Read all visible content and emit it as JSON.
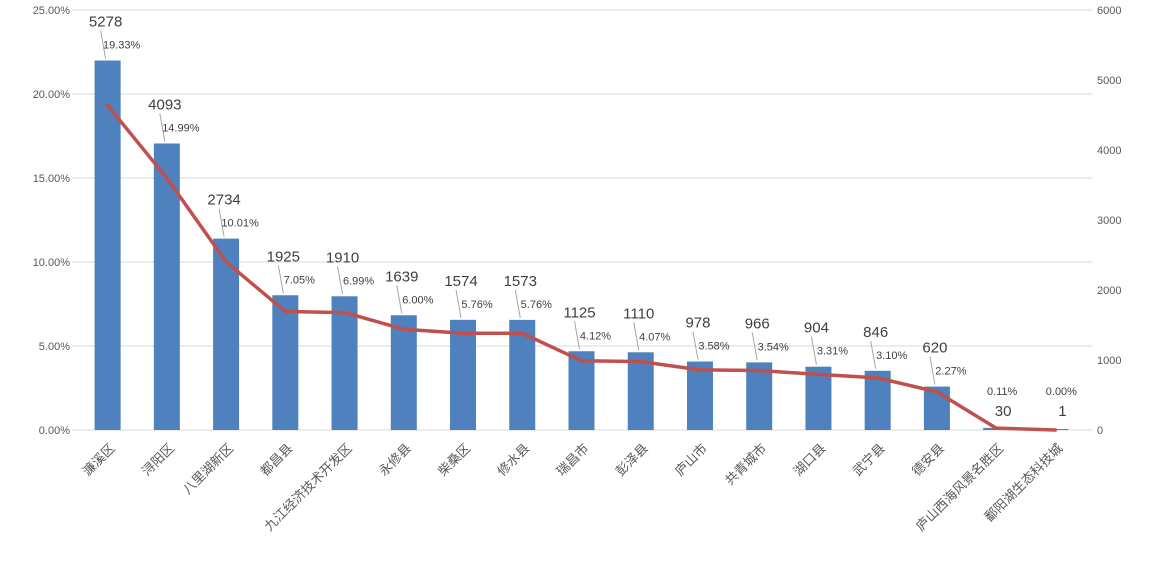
{
  "chart_data": {
    "type": "bar",
    "title": "",
    "legend": "none",
    "grid": true,
    "categories": [
      "濂溪区",
      "浔阳区",
      "八里湖新区",
      "都昌县",
      "九江经济技术开发区",
      "永修县",
      "柴桑区",
      "修水县",
      "瑞昌市",
      "彭泽县",
      "庐山市",
      "共青城市",
      "湖口县",
      "武宁县",
      "德安县",
      "庐山西海风景名胜区",
      "鄱阳湖生态科技城"
    ],
    "series": [
      {
        "type": "bar",
        "axis": "right",
        "values": [
          5278,
          4093,
          2734,
          1925,
          1910,
          1639,
          1574,
          1573,
          1125,
          1110,
          978,
          966,
          904,
          846,
          620,
          30,
          1
        ],
        "value_labels": [
          "5278",
          "4093",
          "2734",
          "1925",
          "1910",
          "1639",
          "1574",
          "1573",
          "1125",
          "1110",
          "978",
          "966",
          "904",
          "846",
          "620",
          "30",
          "1"
        ]
      },
      {
        "type": "line",
        "axis": "left",
        "values": [
          19.33,
          14.99,
          10.01,
          7.05,
          6.99,
          6.0,
          5.76,
          5.76,
          4.12,
          4.07,
          3.58,
          3.54,
          3.31,
          3.1,
          2.27,
          0.11,
          0.0
        ],
        "value_labels": [
          "19.33%",
          "14.99%",
          "10.01%",
          "7.05%",
          "6.99%",
          "6.00%",
          "5.76%",
          "5.76%",
          "4.12%",
          "4.07%",
          "3.58%",
          "3.54%",
          "3.31%",
          "3.10%",
          "2.27%",
          "0.11%",
          "0.00%"
        ]
      }
    ],
    "left_axis": {
      "min": 0,
      "max": 25,
      "step": 5,
      "tick_labels": [
        "0.00%",
        "5.00%",
        "10.00%",
        "15.00%",
        "20.00%",
        "25.00%"
      ]
    },
    "right_axis": {
      "min": 0,
      "max": 6000,
      "step": 1000,
      "tick_labels": [
        "0",
        "1000",
        "2000",
        "3000",
        "4000",
        "5000",
        "6000"
      ]
    }
  },
  "colors": {
    "bar": "#4E81BD",
    "line": "#C0504D",
    "grid": "#D9D9D9",
    "axis_text": "#595959",
    "label_text": "#3F3F3F",
    "leader": "#A6A6A6",
    "background": "#FFFFFF"
  }
}
